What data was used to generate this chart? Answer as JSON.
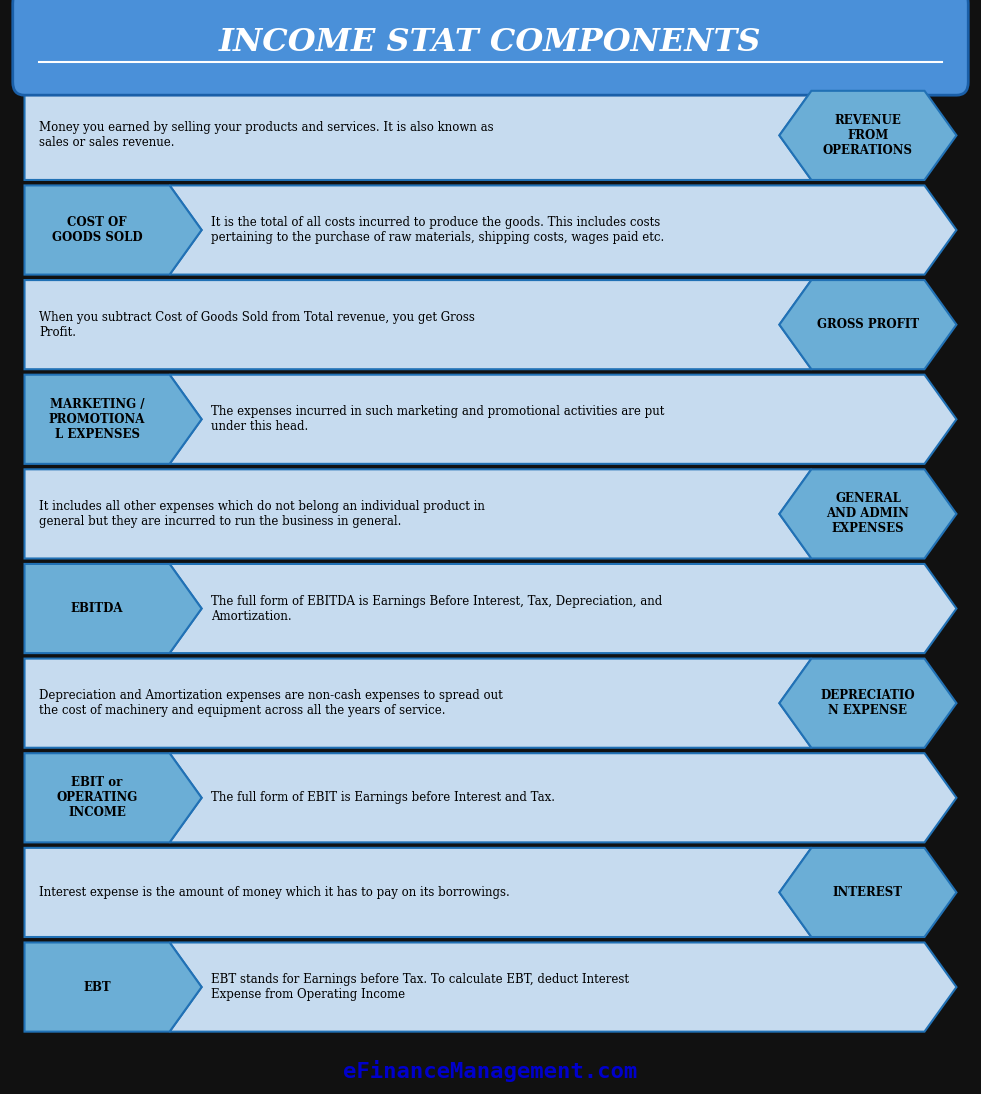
{
  "title": "INCOME STAT COMPONENTS",
  "title_bg": "#4a90d9",
  "title_color": "white",
  "footer": "eFinanceManagement.com",
  "footer_color": "#0000cc",
  "bg_color": "#111111",
  "rows": [
    {
      "label": "REVENUE\nFROM\nOPERATIONS",
      "label_side": "right",
      "description": "Money you earned by selling your products and services. It is also known as\nsales or sales revenue.",
      "label_bg": "#6baed6",
      "desc_bg": "#c6dbef",
      "border_color": "#2171b5"
    },
    {
      "label": "COST OF\nGOODS SOLD",
      "label_side": "left",
      "description": "It is the total of all costs incurred to produce the goods. This includes costs\npertaining to the purchase of raw materials, shipping costs, wages paid etc.",
      "label_bg": "#6baed6",
      "desc_bg": "#c6dbef",
      "border_color": "#2171b5"
    },
    {
      "label": "GROSS PROFIT",
      "label_side": "right",
      "description": "When you subtract Cost of Goods Sold from Total revenue, you get Gross\nProfit.",
      "label_bg": "#6baed6",
      "desc_bg": "#c6dbef",
      "border_color": "#2171b5"
    },
    {
      "label": "MARKETING /\nPROMOTIONA\nL EXPENSES",
      "label_side": "left",
      "description": "The expenses incurred in such marketing and promotional activities are put\nunder this head.",
      "label_bg": "#6baed6",
      "desc_bg": "#c6dbef",
      "border_color": "#2171b5"
    },
    {
      "label": "GENERAL\nAND ADMIN\nEXPENSES",
      "label_side": "right",
      "description": "It includes all other expenses which do not belong an individual product in\ngeneral but they are incurred to run the business in general.",
      "label_bg": "#6baed6",
      "desc_bg": "#c6dbef",
      "border_color": "#2171b5"
    },
    {
      "label": "EBITDA",
      "label_side": "left",
      "description": "The full form of EBITDA is Earnings Before Interest, Tax, Depreciation, and\nAmortization.",
      "label_bg": "#6baed6",
      "desc_bg": "#c6dbef",
      "border_color": "#2171b5"
    },
    {
      "label": "DEPRECIATIO\nN EXPENSE",
      "label_side": "right",
      "description": "Depreciation and Amortization expenses are non-cash expenses to spread out\nthe cost of machinery and equipment across all the years of service.",
      "label_bg": "#6baed6",
      "desc_bg": "#c6dbef",
      "border_color": "#2171b5"
    },
    {
      "label": "EBIT or\nOPERATING\nINCOME",
      "label_side": "left",
      "description": "The full form of EBIT is Earnings before Interest and Tax.",
      "label_bg": "#6baed6",
      "desc_bg": "#c6dbef",
      "border_color": "#2171b5"
    },
    {
      "label": "INTEREST",
      "label_side": "right",
      "description": "Interest expense is the amount of money which it has to pay on its borrowings.",
      "label_bg": "#6baed6",
      "desc_bg": "#c6dbef",
      "border_color": "#2171b5"
    },
    {
      "label": "EBT",
      "label_side": "left",
      "description": "EBT stands for Earnings before Tax. To calculate EBT, deduct Interest\nExpense from Operating Income",
      "label_bg": "#6baed6",
      "desc_bg": "#c6dbef",
      "border_color": "#2171b5"
    }
  ]
}
